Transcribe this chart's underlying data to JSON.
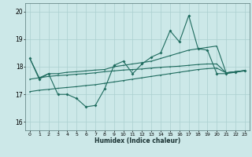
{
  "xlabel": "Humidex (Indice chaleur)",
  "xlim": [
    -0.5,
    23.5
  ],
  "ylim": [
    15.7,
    20.3
  ],
  "yticks": [
    16,
    17,
    18,
    19,
    20
  ],
  "xticks": [
    0,
    1,
    2,
    3,
    4,
    5,
    6,
    7,
    8,
    9,
    10,
    11,
    12,
    13,
    14,
    15,
    16,
    17,
    18,
    19,
    20,
    21,
    22,
    23
  ],
  "bg_color": "#cce8e8",
  "grid_color": "#aacfcf",
  "line_color": "#1e6b5e",
  "line_lw": 0.8,
  "marker_size": 2.0,
  "line1_x": [
    0,
    1,
    2,
    3,
    4,
    5,
    6,
    7,
    8,
    9,
    10,
    11,
    12,
    13,
    14,
    15,
    16,
    17,
    18,
    19,
    20,
    21,
    22,
    23
  ],
  "line1_y": [
    18.3,
    17.55,
    17.75,
    17.0,
    17.0,
    16.85,
    16.55,
    16.6,
    17.2,
    18.05,
    18.2,
    17.75,
    18.1,
    18.35,
    18.5,
    19.3,
    18.9,
    19.85,
    18.65,
    18.6,
    17.75,
    17.75,
    17.8,
    17.85
  ],
  "line2_x": [
    0,
    1,
    2,
    3,
    4,
    5,
    6,
    7,
    8,
    9,
    10,
    11,
    12,
    13,
    14,
    15,
    16,
    17,
    18,
    19,
    20,
    21,
    22,
    23
  ],
  "line2_y": [
    18.3,
    17.6,
    17.75,
    17.75,
    17.8,
    17.82,
    17.85,
    17.88,
    17.9,
    18.0,
    18.05,
    18.1,
    18.15,
    18.2,
    18.3,
    18.4,
    18.5,
    18.6,
    18.65,
    18.7,
    18.75,
    17.78,
    17.82,
    17.86
  ],
  "line3_x": [
    0,
    1,
    2,
    3,
    4,
    5,
    6,
    7,
    8,
    9,
    10,
    11,
    12,
    13,
    14,
    15,
    16,
    17,
    18,
    19,
    20,
    21,
    22,
    23
  ],
  "line3_y": [
    17.55,
    17.6,
    17.65,
    17.68,
    17.7,
    17.73,
    17.75,
    17.78,
    17.82,
    17.85,
    17.88,
    17.9,
    17.92,
    17.95,
    17.98,
    18.0,
    18.02,
    18.05,
    18.08,
    18.1,
    18.1,
    17.78,
    17.82,
    17.86
  ],
  "line4_x": [
    0,
    1,
    2,
    3,
    4,
    5,
    6,
    7,
    8,
    9,
    10,
    11,
    12,
    13,
    14,
    15,
    16,
    17,
    18,
    19,
    20,
    21,
    22,
    23
  ],
  "line4_y": [
    17.1,
    17.15,
    17.18,
    17.22,
    17.25,
    17.28,
    17.32,
    17.35,
    17.4,
    17.45,
    17.5,
    17.55,
    17.6,
    17.65,
    17.7,
    17.75,
    17.8,
    17.85,
    17.9,
    17.93,
    17.95,
    17.78,
    17.82,
    17.86
  ]
}
